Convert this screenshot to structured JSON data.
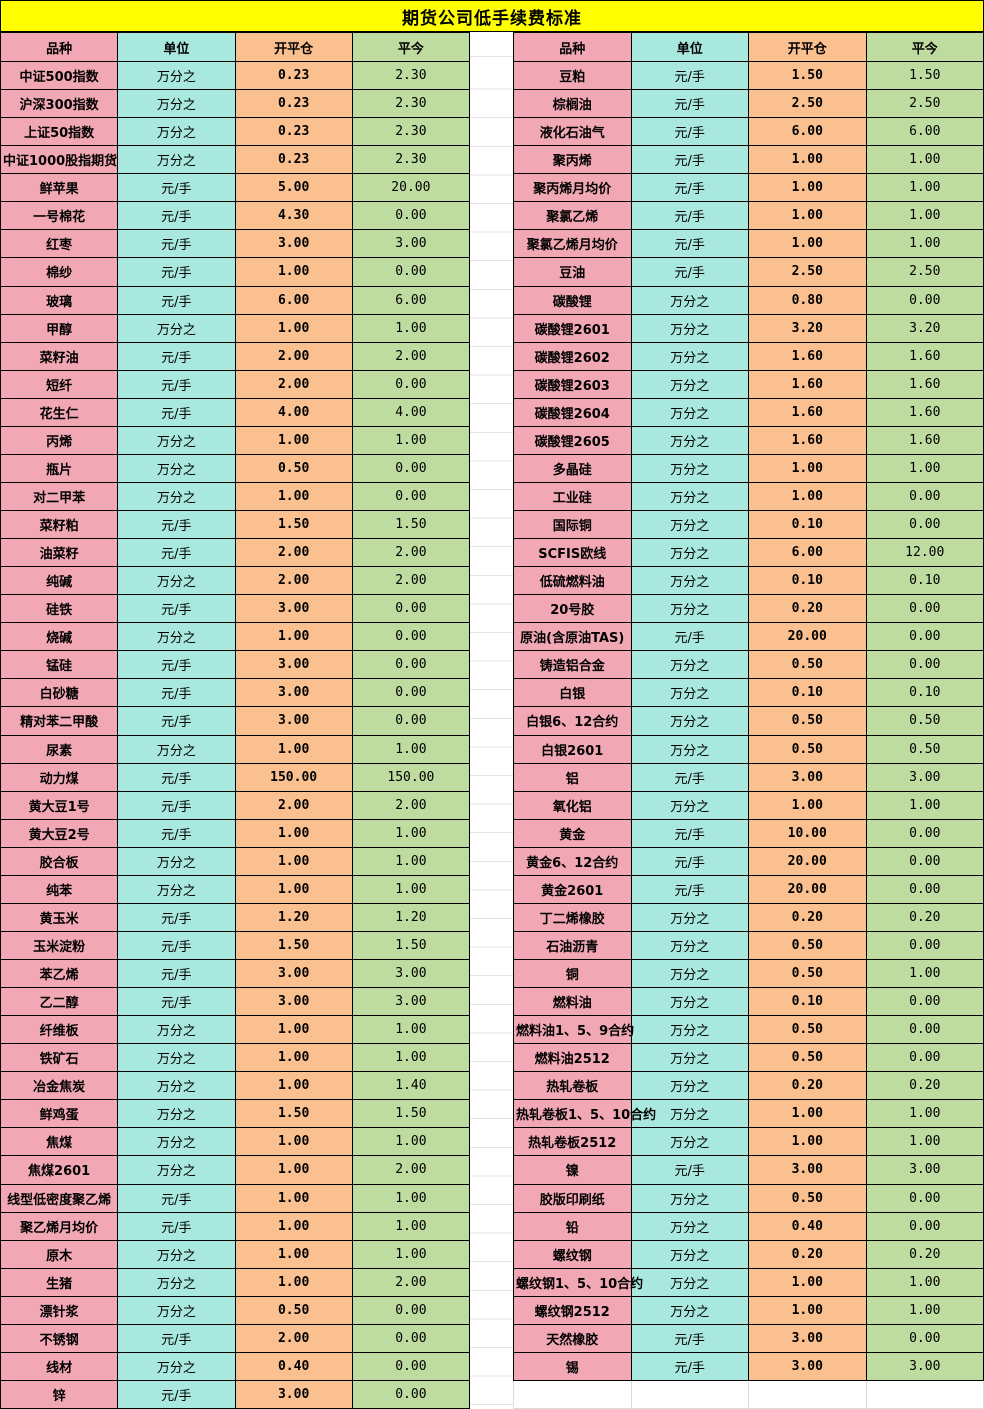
{
  "title": "期货公司低手续费标准",
  "columns": [
    "品种",
    "单位",
    "开平仓",
    "平今"
  ],
  "colors": {
    "title_bg": "#FFFF00",
    "variety_bg": "#F2A8B4",
    "unit_bg": "#A8E8DE",
    "open_close_bg": "#FAC08F",
    "close_today_bg": "#BEDCA0",
    "border": "#000000"
  },
  "left_table": {
    "rows": [
      [
        "中证500指数",
        "万分之",
        "0.23",
        "2.30"
      ],
      [
        "沪深300指数",
        "万分之",
        "0.23",
        "2.30"
      ],
      [
        "上证50指数",
        "万分之",
        "0.23",
        "2.30"
      ],
      [
        "中证1000股指期货",
        "万分之",
        "0.23",
        "2.30"
      ],
      [
        "鲜苹果",
        "元/手",
        "5.00",
        "20.00"
      ],
      [
        "一号棉花",
        "元/手",
        "4.30",
        "0.00"
      ],
      [
        "红枣",
        "元/手",
        "3.00",
        "3.00"
      ],
      [
        "棉纱",
        "元/手",
        "1.00",
        "0.00"
      ],
      [
        "玻璃",
        "元/手",
        "6.00",
        "6.00"
      ],
      [
        "甲醇",
        "万分之",
        "1.00",
        "1.00"
      ],
      [
        "菜籽油",
        "元/手",
        "2.00",
        "2.00"
      ],
      [
        "短纤",
        "元/手",
        "2.00",
        "0.00"
      ],
      [
        "花生仁",
        "元/手",
        "4.00",
        "4.00"
      ],
      [
        "丙烯",
        "万分之",
        "1.00",
        "1.00"
      ],
      [
        "瓶片",
        "万分之",
        "0.50",
        "0.00"
      ],
      [
        "对二甲苯",
        "万分之",
        "1.00",
        "0.00"
      ],
      [
        "菜籽粕",
        "元/手",
        "1.50",
        "1.50"
      ],
      [
        "油菜籽",
        "元/手",
        "2.00",
        "2.00"
      ],
      [
        "纯碱",
        "万分之",
        "2.00",
        "2.00"
      ],
      [
        "硅铁",
        "元/手",
        "3.00",
        "0.00"
      ],
      [
        "烧碱",
        "万分之",
        "1.00",
        "0.00"
      ],
      [
        "锰硅",
        "元/手",
        "3.00",
        "0.00"
      ],
      [
        "白砂糖",
        "元/手",
        "3.00",
        "0.00"
      ],
      [
        "精对苯二甲酸",
        "元/手",
        "3.00",
        "0.00"
      ],
      [
        "尿素",
        "万分之",
        "1.00",
        "1.00"
      ],
      [
        "动力煤",
        "元/手",
        "150.00",
        "150.00"
      ],
      [
        "黄大豆1号",
        "元/手",
        "2.00",
        "2.00"
      ],
      [
        "黄大豆2号",
        "元/手",
        "1.00",
        "1.00"
      ],
      [
        "胶合板",
        "万分之",
        "1.00",
        "1.00"
      ],
      [
        "纯苯",
        "万分之",
        "1.00",
        "1.00"
      ],
      [
        "黄玉米",
        "元/手",
        "1.20",
        "1.20"
      ],
      [
        "玉米淀粉",
        "元/手",
        "1.50",
        "1.50"
      ],
      [
        "苯乙烯",
        "元/手",
        "3.00",
        "3.00"
      ],
      [
        "乙二醇",
        "元/手",
        "3.00",
        "3.00"
      ],
      [
        "纤维板",
        "万分之",
        "1.00",
        "1.00"
      ],
      [
        "铁矿石",
        "万分之",
        "1.00",
        "1.00"
      ],
      [
        "冶金焦炭",
        "万分之",
        "1.00",
        "1.40"
      ],
      [
        "鲜鸡蛋",
        "万分之",
        "1.50",
        "1.50"
      ],
      [
        "焦煤",
        "万分之",
        "1.00",
        "1.00"
      ],
      [
        "焦煤2601",
        "万分之",
        "1.00",
        "2.00"
      ],
      [
        "线型低密度聚乙烯",
        "元/手",
        "1.00",
        "1.00"
      ],
      [
        "聚乙烯月均价",
        "元/手",
        "1.00",
        "1.00"
      ],
      [
        "原木",
        "万分之",
        "1.00",
        "1.00"
      ],
      [
        "生猪",
        "万分之",
        "1.00",
        "2.00"
      ],
      [
        "漂针浆",
        "万分之",
        "0.50",
        "0.00"
      ],
      [
        "不锈钢",
        "元/手",
        "2.00",
        "0.00"
      ],
      [
        "线材",
        "万分之",
        "0.40",
        "0.00"
      ],
      [
        "锌",
        "元/手",
        "3.00",
        "0.00"
      ]
    ]
  },
  "right_table": {
    "trailing_empty_row": true,
    "rows": [
      [
        "豆粕",
        "元/手",
        "1.50",
        "1.50"
      ],
      [
        "棕榈油",
        "元/手",
        "2.50",
        "2.50"
      ],
      [
        "液化石油气",
        "元/手",
        "6.00",
        "6.00"
      ],
      [
        "聚丙烯",
        "元/手",
        "1.00",
        "1.00"
      ],
      [
        "聚丙烯月均价",
        "元/手",
        "1.00",
        "1.00"
      ],
      [
        "聚氯乙烯",
        "元/手",
        "1.00",
        "1.00"
      ],
      [
        "聚氯乙烯月均价",
        "元/手",
        "1.00",
        "1.00"
      ],
      [
        "豆油",
        "元/手",
        "2.50",
        "2.50"
      ],
      [
        "碳酸锂",
        "万分之",
        "0.80",
        "0.00"
      ],
      [
        "碳酸锂2601",
        "万分之",
        "3.20",
        "3.20"
      ],
      [
        "碳酸锂2602",
        "万分之",
        "1.60",
        "1.60"
      ],
      [
        "碳酸锂2603",
        "万分之",
        "1.60",
        "1.60"
      ],
      [
        "碳酸锂2604",
        "万分之",
        "1.60",
        "1.60"
      ],
      [
        "碳酸锂2605",
        "万分之",
        "1.60",
        "1.60"
      ],
      [
        "多晶硅",
        "万分之",
        "1.00",
        "1.00"
      ],
      [
        "工业硅",
        "万分之",
        "1.00",
        "0.00"
      ],
      [
        "国际铜",
        "万分之",
        "0.10",
        "0.00"
      ],
      [
        "SCFIS欧线",
        "万分之",
        "6.00",
        "12.00"
      ],
      [
        "低硫燃料油",
        "万分之",
        "0.10",
        "0.10"
      ],
      [
        "20号胶",
        "万分之",
        "0.20",
        "0.00"
      ],
      [
        "原油(含原油TAS)",
        "元/手",
        "20.00",
        "0.00"
      ],
      [
        "铸造铝合金",
        "万分之",
        "0.50",
        "0.00"
      ],
      [
        "白银",
        "万分之",
        "0.10",
        "0.10"
      ],
      [
        "白银6、12合约",
        "万分之",
        "0.50",
        "0.50"
      ],
      [
        "白银2601",
        "万分之",
        "0.50",
        "0.50"
      ],
      [
        "铝",
        "元/手",
        "3.00",
        "3.00"
      ],
      [
        "氧化铝",
        "万分之",
        "1.00",
        "1.00"
      ],
      [
        "黄金",
        "元/手",
        "10.00",
        "0.00"
      ],
      [
        "黄金6、12合约",
        "元/手",
        "20.00",
        "0.00"
      ],
      [
        "黄金2601",
        "元/手",
        "20.00",
        "0.00"
      ],
      [
        "丁二烯橡胶",
        "万分之",
        "0.20",
        "0.20"
      ],
      [
        "石油沥青",
        "万分之",
        "0.50",
        "0.00"
      ],
      [
        "铜",
        "万分之",
        "0.50",
        "1.00"
      ],
      [
        "燃料油",
        "万分之",
        "0.10",
        "0.00"
      ],
      [
        "燃料油1、5、9合约",
        "万分之",
        "0.50",
        "0.00"
      ],
      [
        "燃料油2512",
        "万分之",
        "0.50",
        "0.00"
      ],
      [
        "热轧卷板",
        "万分之",
        "0.20",
        "0.20"
      ],
      [
        "热轧卷板1、5、10合约",
        "万分之",
        "1.00",
        "1.00"
      ],
      [
        "热轧卷板2512",
        "万分之",
        "1.00",
        "1.00"
      ],
      [
        "镍",
        "元/手",
        "3.00",
        "3.00"
      ],
      [
        "胶版印刷纸",
        "万分之",
        "0.50",
        "0.00"
      ],
      [
        "铅",
        "万分之",
        "0.40",
        "0.00"
      ],
      [
        "螺纹钢",
        "万分之",
        "0.20",
        "0.20"
      ],
      [
        "螺纹钢1、5、10合约",
        "万分之",
        "1.00",
        "1.00"
      ],
      [
        "螺纹钢2512",
        "万分之",
        "1.00",
        "1.00"
      ],
      [
        "天然橡胶",
        "元/手",
        "3.00",
        "0.00"
      ],
      [
        "锡",
        "元/手",
        "3.00",
        "3.00"
      ]
    ]
  }
}
